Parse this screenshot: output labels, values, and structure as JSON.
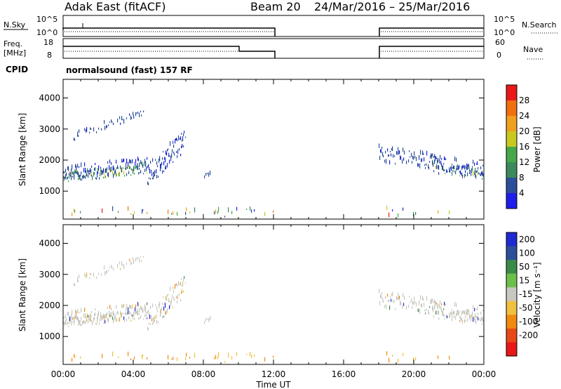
{
  "header": {
    "station": "Adak East (fitACF)",
    "beam": "Beam 20",
    "date_range": "24/Mar/2016 – 25/Mar/2016"
  },
  "mini_panels": {
    "nsky_label": "N.Sky",
    "nsearch_label": "N.Search",
    "freq_label_1": "Freq.",
    "freq_label_2": "[MHz]",
    "nave_label": "Nave",
    "cpid_label": "CPID",
    "cpid_value": "normalsound (fast) 157 RF",
    "nsky_ticks": [
      "10^5",
      "10^0"
    ],
    "nsearch_ticks": [
      "10^5",
      "10^0"
    ],
    "freq_ticks": [
      "18",
      "8"
    ],
    "nave_ticks": [
      "60",
      "0"
    ]
  },
  "chart_data": [
    {
      "type": "heatmap",
      "name": "power",
      "ylabel": "Slant Range [km]",
      "xlabel": "",
      "x_ticks": [
        "00:00",
        "04:00",
        "08:00",
        "12:00",
        "16:00",
        "20:00",
        "00:00"
      ],
      "y_ticks": [
        1000,
        2000,
        3000,
        4000
      ],
      "ylim": [
        100,
        4600
      ],
      "colorbar_label": "Power [dB]",
      "colorbar_ticks": [
        4,
        8,
        12,
        16,
        20,
        24,
        28
      ],
      "colorbar_colors": [
        "#1e1ee8",
        "#2c4f9a",
        "#3c8a5c",
        "#46a84a",
        "#c8c820",
        "#f0a020",
        "#f07010",
        "#e81818"
      ],
      "data_gaps_hours": [
        [
          12,
          18
        ]
      ],
      "echo_bands": [
        {
          "hours": [
            0,
            4.8
          ],
          "range_km": [
            1200,
            1650
          ],
          "dominant_db": 8
        },
        {
          "hours": [
            4.8,
            7.0
          ],
          "range_km": [
            1500,
            3000
          ],
          "dominant_db": 6
        },
        {
          "hours": [
            0.5,
            4.5
          ],
          "range_km": [
            2500,
            3600
          ],
          "dominant_db": 4
        },
        {
          "hours": [
            18.0,
            24.0
          ],
          "range_km": [
            1400,
            2400
          ],
          "dominant_db": 6
        }
      ]
    },
    {
      "type": "heatmap",
      "name": "velocity",
      "ylabel": "Slant Range [km]",
      "xlabel": "Time UT",
      "x_ticks": [
        "00:00",
        "04:00",
        "08:00",
        "12:00",
        "16:00",
        "20:00",
        "00:00"
      ],
      "y_ticks": [
        1000,
        2000,
        3000,
        4000
      ],
      "ylim": [
        100,
        4600
      ],
      "colorbar_label": "Velocity [m s⁻¹]",
      "colorbar_ticks": [
        "200",
        "100",
        "50",
        "15",
        "-15",
        "-50",
        "-100",
        "-200"
      ],
      "colorbar_colors": [
        "#1e2ad0",
        "#2c4f9a",
        "#3a8a4a",
        "#6cc04a",
        "#c8c8c0",
        "#f0c040",
        "#f08a10",
        "#e84818",
        "#e81818"
      ],
      "data_gaps_hours": [
        [
          12,
          18
        ]
      ]
    }
  ]
}
